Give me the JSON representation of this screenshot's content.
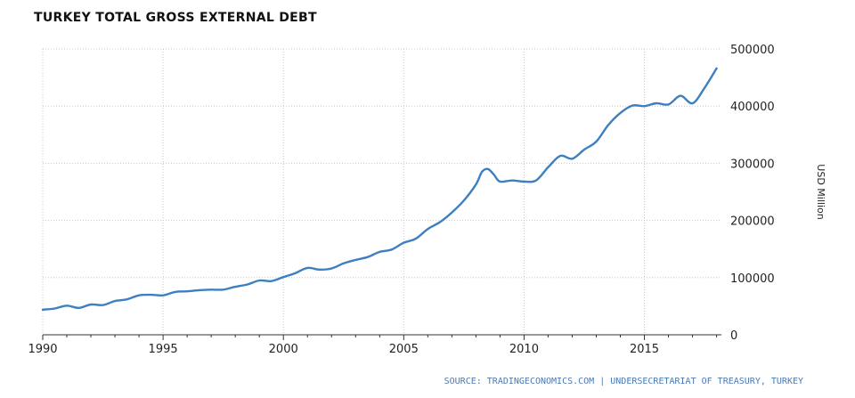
{
  "chart_data": {
    "type": "line",
    "title": "TURKEY TOTAL GROSS EXTERNAL DEBT",
    "ylabel": "USD Million",
    "xlabel": "",
    "source": "SOURCE: TRADINGECONOMICS.COM | UNDERSECRETARIAT OF TREASURY, TURKEY",
    "xlim": [
      1990,
      2018.2
    ],
    "ylim": [
      0,
      500000
    ],
    "x_ticks": [
      1990,
      1995,
      2000,
      2005,
      2010,
      2015
    ],
    "x_tick_labels": [
      "1990",
      "1995",
      "2000",
      "2005",
      "2010",
      "2015"
    ],
    "y_ticks": [
      0,
      100000,
      200000,
      300000,
      400000,
      500000
    ],
    "y_tick_labels": [
      "0",
      "100000",
      "200000",
      "300000",
      "400000",
      "500000"
    ],
    "y_axis_side": "right",
    "grid": true,
    "line_color": "#3d7fc0",
    "series": [
      {
        "x": [
          1990,
          1990.5,
          1991,
          1991.5,
          1992,
          1992.5,
          1993,
          1993.5,
          1994,
          1994.5,
          1995,
          1995.5,
          1996,
          1996.5,
          1997,
          1997.5,
          1998,
          1998.5,
          1999,
          1999.5,
          2000,
          2000.5,
          2001,
          2001.5,
          2002,
          2002.5,
          2003,
          2003.5,
          2004,
          2004.5,
          2005,
          2005.5,
          2006,
          2006.5,
          2007,
          2007.5,
          2008,
          2008.25,
          2008.5,
          2008.75,
          2009,
          2009.5,
          2010,
          2010.5,
          2011,
          2011.5,
          2012,
          2012.5,
          2013,
          2013.5,
          2014,
          2014.5,
          2015,
          2015.5,
          2016,
          2016.5,
          2017,
          2017.5,
          2018
        ],
        "y": [
          44000,
          46000,
          51000,
          47000,
          53000,
          52000,
          59000,
          62000,
          69000,
          70000,
          69000,
          75000,
          76000,
          78000,
          79000,
          79000,
          84000,
          88000,
          95000,
          94000,
          101000,
          108000,
          117000,
          114000,
          116000,
          125000,
          131000,
          136000,
          145000,
          149000,
          161000,
          168000,
          185000,
          197000,
          214000,
          235000,
          263000,
          285000,
          290000,
          280000,
          268000,
          270000,
          268000,
          270000,
          293000,
          313000,
          308000,
          324000,
          338000,
          367000,
          388000,
          401000,
          400000,
          405000,
          403000,
          418000,
          405000,
          432000,
          466000
        ]
      }
    ]
  }
}
